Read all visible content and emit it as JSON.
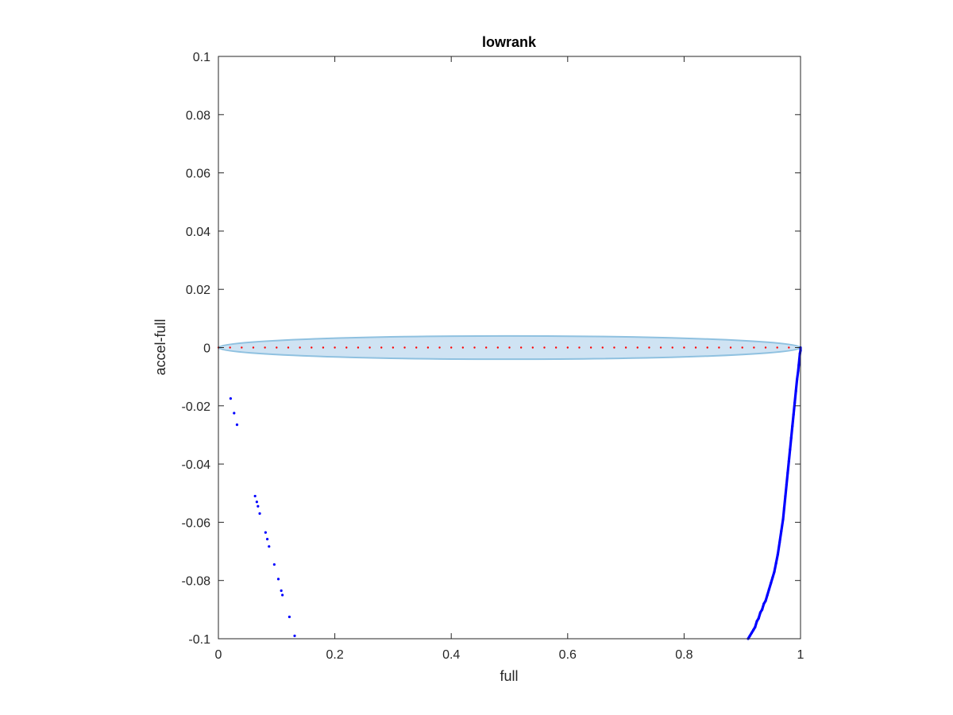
{
  "chart_data": {
    "type": "scatter",
    "title": "lowrank",
    "xlabel": "full",
    "ylabel": "accel-full",
    "xlim": [
      0,
      1
    ],
    "ylim": [
      -0.1,
      0.1
    ],
    "grid": false,
    "legend": "none",
    "x_ticks": [
      0,
      0.2,
      0.4,
      0.6,
      0.8,
      1
    ],
    "x_tick_labels": [
      "0",
      "0.2",
      "0.4",
      "0.6",
      "0.8",
      "1"
    ],
    "y_ticks": [
      0.1,
      0.08,
      0.06,
      0.04,
      0.02,
      0,
      -0.02,
      -0.04,
      -0.06,
      -0.08,
      -0.1
    ],
    "y_tick_labels": [
      "0.1",
      "0.08",
      "0.06",
      "0.04",
      "0.02",
      "0",
      "-0.02",
      "-0.04",
      "-0.06",
      "-0.08",
      "-0.1"
    ],
    "region": {
      "type": "ellipse",
      "x_range": [
        0,
        1
      ],
      "y_center": 0,
      "y_halfwidth": 0.004,
      "fill": "#cfe3f3",
      "stroke": "#8fc1e0"
    },
    "reference_points": {
      "color": "#ff0000",
      "y": 0,
      "x": [
        0.0,
        0.02,
        0.04,
        0.06,
        0.08,
        0.1,
        0.12,
        0.14,
        0.16,
        0.18,
        0.2,
        0.22,
        0.24,
        0.26,
        0.28,
        0.3,
        0.32,
        0.34,
        0.36,
        0.38,
        0.4,
        0.42,
        0.44,
        0.46,
        0.48,
        0.5,
        0.52,
        0.54,
        0.56,
        0.58,
        0.6,
        0.62,
        0.64,
        0.66,
        0.68,
        0.7,
        0.72,
        0.74,
        0.76,
        0.78,
        0.8,
        0.82,
        0.84,
        0.86,
        0.88,
        0.9,
        0.92,
        0.94,
        0.96,
        0.98,
        1.0
      ]
    },
    "series": [
      {
        "color": "#0000ff",
        "points": [
          [
            0.021,
            -0.0175
          ],
          [
            0.027,
            -0.0225
          ],
          [
            0.032,
            -0.0265
          ],
          [
            0.063,
            -0.051
          ],
          [
            0.066,
            -0.053
          ],
          [
            0.068,
            -0.0545
          ],
          [
            0.071,
            -0.057
          ],
          [
            0.081,
            -0.0635
          ],
          [
            0.084,
            -0.0658
          ],
          [
            0.087,
            -0.0683
          ],
          [
            0.096,
            -0.0745
          ],
          [
            0.103,
            -0.0795
          ],
          [
            0.108,
            -0.0835
          ],
          [
            0.11,
            -0.085
          ],
          [
            0.122,
            -0.0925
          ],
          [
            0.131,
            -0.099
          ]
        ]
      },
      {
        "color": "#0000ff",
        "points": [
          [
            0.91,
            -0.1
          ],
          [
            0.913,
            -0.099
          ],
          [
            0.916,
            -0.098
          ],
          [
            0.919,
            -0.097
          ],
          [
            0.922,
            -0.096
          ],
          [
            0.925,
            -0.094
          ],
          [
            0.928,
            -0.093
          ],
          [
            0.931,
            -0.091
          ],
          [
            0.934,
            -0.09
          ],
          [
            0.937,
            -0.088
          ],
          [
            0.94,
            -0.087
          ],
          [
            0.943,
            -0.085
          ],
          [
            0.946,
            -0.083
          ],
          [
            0.949,
            -0.081
          ],
          [
            0.952,
            -0.079
          ],
          [
            0.955,
            -0.077
          ],
          [
            0.958,
            -0.074
          ],
          [
            0.961,
            -0.071
          ],
          [
            0.964,
            -0.067
          ],
          [
            0.967,
            -0.063
          ],
          [
            0.97,
            -0.059
          ],
          [
            0.972,
            -0.055
          ],
          [
            0.974,
            -0.051
          ],
          [
            0.976,
            -0.047
          ],
          [
            0.978,
            -0.043
          ],
          [
            0.98,
            -0.039
          ],
          [
            0.982,
            -0.035
          ],
          [
            0.984,
            -0.031
          ],
          [
            0.986,
            -0.027
          ],
          [
            0.988,
            -0.023
          ],
          [
            0.99,
            -0.019
          ],
          [
            0.992,
            -0.015
          ],
          [
            0.994,
            -0.011
          ],
          [
            0.996,
            -0.008
          ],
          [
            0.997,
            -0.006
          ],
          [
            0.998,
            -0.004
          ],
          [
            0.999,
            -0.002
          ],
          [
            1.0,
            -0.001
          ],
          [
            1.0,
            0.0
          ]
        ]
      }
    ]
  }
}
